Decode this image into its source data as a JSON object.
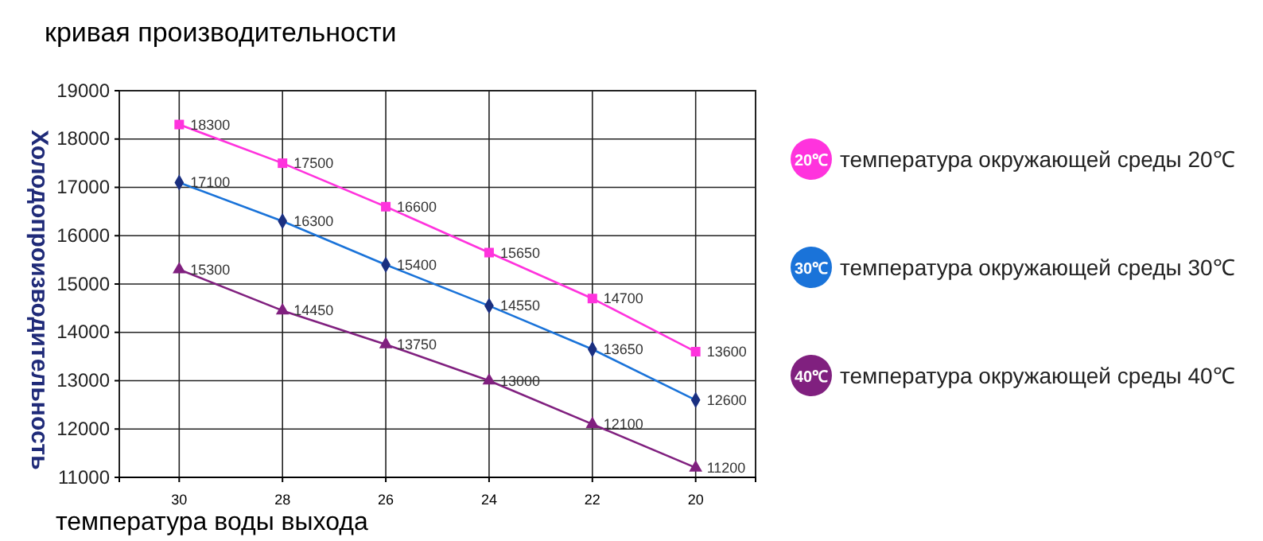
{
  "chart_data": {
    "type": "line",
    "title": "кривая производительности",
    "xlabel": "температура воды выхода",
    "ylabel": "Холодопроизводительность",
    "categories": [
      "30",
      "28",
      "26",
      "24",
      "22",
      "20"
    ],
    "series": [
      {
        "name": "температура окружающей среды 20℃",
        "color": "#ff33dd",
        "marker": "square",
        "values": [
          18300,
          17500,
          16600,
          15650,
          14700,
          13600
        ]
      },
      {
        "name": "температура окружающей среды 30℃",
        "color": "#1a73d9",
        "marker": "diamond",
        "values": [
          17100,
          16300,
          15400,
          14550,
          13650,
          12600
        ]
      },
      {
        "name": "температура окружающей среды 40℃",
        "color": "#80207f",
        "marker": "triangle",
        "values": [
          15300,
          14450,
          13750,
          13000,
          12100,
          11200
        ]
      }
    ],
    "annotations": [
      "20℃",
      "30℃",
      "40℃"
    ],
    "ylim": [
      11000,
      19000
    ],
    "yticks": [
      11000,
      12000,
      13000,
      14000,
      15000,
      16000,
      17000,
      18000,
      19000
    ],
    "grid": true,
    "data_labels": true,
    "legend": "right"
  }
}
